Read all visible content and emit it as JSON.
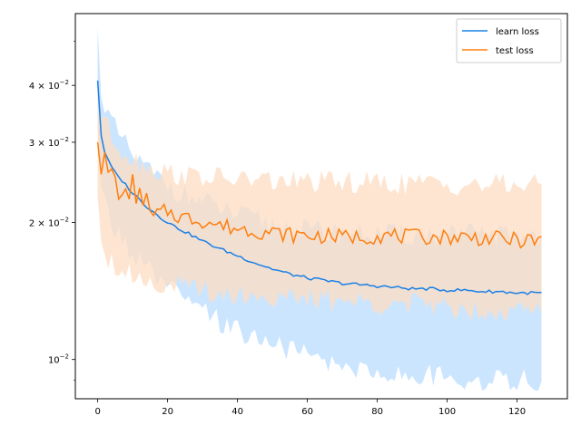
{
  "chart_data": {
    "type": "line",
    "title": "",
    "xlabel": "",
    "ylabel": "",
    "y_scale": "log",
    "xlim": [
      -6.4,
      134.4
    ],
    "ylim": [
      0.0082,
      0.0575
    ],
    "grid": false,
    "legend_position": "top-right",
    "x_ticks": [
      0,
      20,
      40,
      60,
      80,
      100,
      120
    ],
    "x_tick_labels": [
      "0",
      "20",
      "40",
      "60",
      "80",
      "100",
      "120"
    ],
    "y_ticks": [
      0.01,
      0.02,
      0.03,
      0.04
    ],
    "y_tick_labels": [
      {
        "base": "10",
        "exp": "−2",
        "coef": ""
      },
      {
        "base": "10",
        "exp": "−2",
        "coef": "2 × "
      },
      {
        "base": "10",
        "exp": "−2",
        "coef": "3 × "
      },
      {
        "base": "10",
        "exp": "−2",
        "coef": "4 × "
      }
    ],
    "series": [
      {
        "name": "learn loss",
        "color": "#1a80e6",
        "band_color": "#cce5ff",
        "key_x": [
          0,
          1,
          2,
          4,
          6,
          8,
          10,
          14,
          18,
          22,
          26,
          30,
          35,
          40,
          45,
          50,
          55,
          60,
          65,
          70,
          75,
          80,
          85,
          90,
          95,
          100,
          105,
          110,
          115,
          120,
          127
        ],
        "key_y": [
          0.041,
          0.031,
          0.0285,
          0.0265,
          0.0252,
          0.0242,
          0.0232,
          0.0217,
          0.0205,
          0.0196,
          0.0189,
          0.0182,
          0.0175,
          0.0169,
          0.0163,
          0.0158,
          0.0154,
          0.0151,
          0.0149,
          0.0147,
          0.0146,
          0.0145,
          0.0144,
          0.0143,
          0.0143,
          0.0142,
          0.0142,
          0.0141,
          0.0141,
          0.014,
          0.014
        ],
        "band_upper": [
          0.052,
          0.04,
          0.036,
          0.033,
          0.031,
          0.0295,
          0.028,
          0.0262,
          0.0248,
          0.0238,
          0.0228,
          0.0222,
          0.0215,
          0.0208,
          0.0203,
          0.0198,
          0.0195,
          0.0192,
          0.0191,
          0.019,
          0.0189,
          0.0189,
          0.0188,
          0.0188,
          0.0188,
          0.0188,
          0.0188,
          0.0188,
          0.0188,
          0.0188,
          0.0188
        ],
        "band_lower": [
          0.031,
          0.024,
          0.022,
          0.02,
          0.0188,
          0.0178,
          0.017,
          0.0158,
          0.0148,
          0.014,
          0.0133,
          0.0127,
          0.0121,
          0.0116,
          0.0112,
          0.0108,
          0.0105,
          0.0102,
          0.0099,
          0.0097,
          0.0095,
          0.0094,
          0.0093,
          0.0092,
          0.0092,
          0.0091,
          0.0091,
          0.009,
          0.009,
          0.009,
          0.009
        ]
      },
      {
        "name": "test loss",
        "color": "#ff7f0e",
        "band_color": "#fedcc1",
        "key_x": [
          0,
          1,
          2,
          3,
          4,
          5,
          6,
          7,
          8,
          9,
          10,
          11,
          12,
          13,
          14,
          15,
          16,
          18,
          20,
          22,
          25,
          30,
          35,
          40,
          45,
          50,
          55,
          60,
          65,
          70,
          75,
          80,
          85,
          90,
          95,
          100,
          105,
          110,
          115,
          120,
          127
        ],
        "key_y": [
          0.03,
          0.0255,
          0.0285,
          0.0258,
          0.0262,
          0.0252,
          0.0225,
          0.023,
          0.0237,
          0.0225,
          0.0255,
          0.022,
          0.0238,
          0.0218,
          0.0232,
          0.0212,
          0.0207,
          0.021,
          0.0212,
          0.0208,
          0.0205,
          0.0202,
          0.0197,
          0.0194,
          0.0192,
          0.019,
          0.0188,
          0.0187,
          0.0187,
          0.0186,
          0.0186,
          0.0187,
          0.0187,
          0.0186,
          0.0186,
          0.0186,
          0.0186,
          0.0185,
          0.0184,
          0.0183,
          0.0182
        ],
        "band_upper": [
          0.039,
          0.035,
          0.034,
          0.032,
          0.031,
          0.03,
          0.0295,
          0.029,
          0.0285,
          0.028,
          0.0278,
          0.0275,
          0.0272,
          0.027,
          0.0268,
          0.0265,
          0.0262,
          0.026,
          0.0258,
          0.0256,
          0.0254,
          0.0252,
          0.025,
          0.0249,
          0.0248,
          0.0247,
          0.0246,
          0.0246,
          0.0245,
          0.0245,
          0.0245,
          0.0244,
          0.0244,
          0.0244,
          0.0243,
          0.0243,
          0.0243,
          0.0242,
          0.0242,
          0.0242,
          0.0242
        ],
        "band_lower": [
          0.0235,
          0.019,
          0.0175,
          0.0168,
          0.0165,
          0.0162,
          0.016,
          0.0158,
          0.0156,
          0.0155,
          0.0154,
          0.0153,
          0.0152,
          0.0151,
          0.015,
          0.0149,
          0.0148,
          0.0147,
          0.0146,
          0.0145,
          0.0144,
          0.0142,
          0.014,
          0.0139,
          0.0138,
          0.0137,
          0.0136,
          0.0135,
          0.0135,
          0.0134,
          0.0134,
          0.0133,
          0.0133,
          0.0132,
          0.0132,
          0.0131,
          0.013,
          0.0129,
          0.0129,
          0.0128,
          0.0128
        ]
      }
    ]
  }
}
